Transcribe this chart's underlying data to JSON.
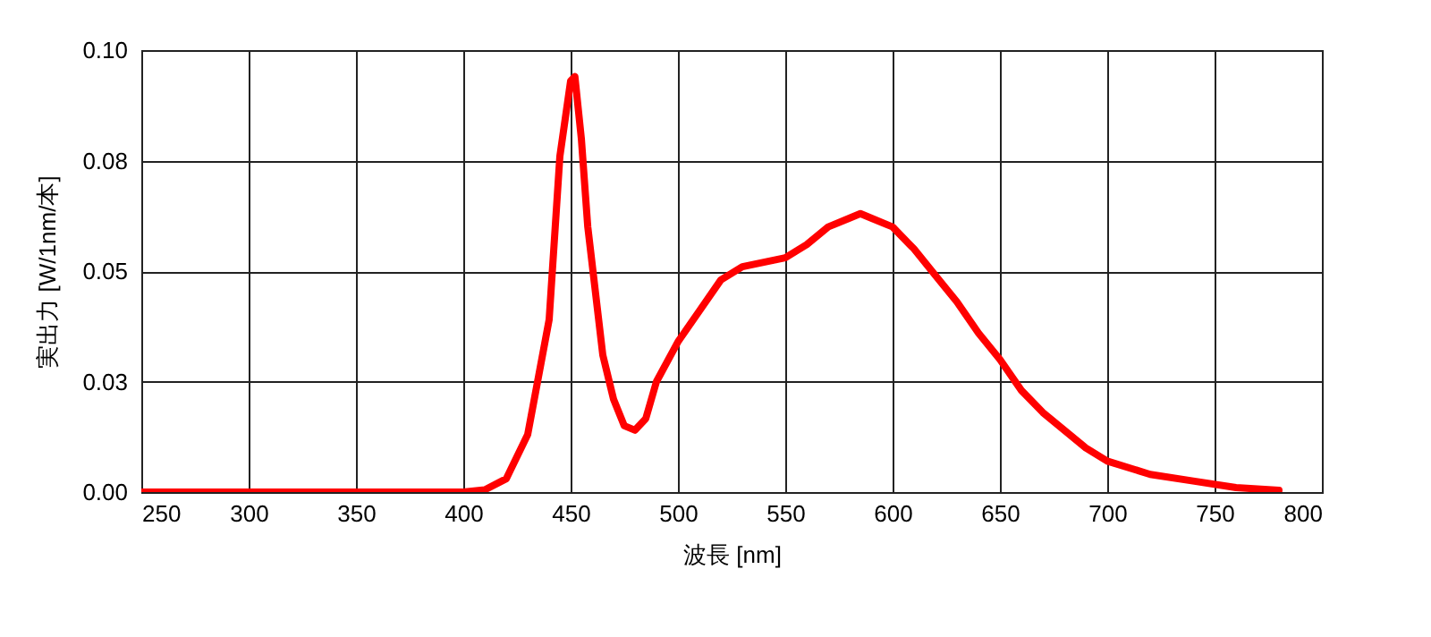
{
  "chart_data": {
    "type": "line",
    "xlabel": "波長 [nm]",
    "ylabel": "実出力 [W/1nm/本]",
    "xlim": [
      250,
      800
    ],
    "xticks": [
      250,
      300,
      350,
      400,
      450,
      500,
      550,
      600,
      650,
      700,
      750,
      800
    ],
    "ylim": [
      0,
      0.1
    ],
    "yticks": [
      {
        "value": 0,
        "label": "0.00"
      },
      {
        "value": 0.025,
        "label": "0.03"
      },
      {
        "value": 0.05,
        "label": "0.05"
      },
      {
        "value": 0.075,
        "label": "0.08"
      },
      {
        "value": 0.1,
        "label": "0.10"
      }
    ],
    "grid": true,
    "line_style": "solid",
    "x": [
      250,
      300,
      350,
      400,
      410,
      420,
      430,
      440,
      445,
      450,
      452,
      455,
      458,
      465,
      470,
      475,
      480,
      485,
      490,
      500,
      510,
      520,
      530,
      540,
      550,
      560,
      570,
      580,
      585,
      590,
      600,
      610,
      620,
      630,
      640,
      650,
      660,
      670,
      680,
      690,
      700,
      720,
      740,
      760,
      780
    ],
    "series": [
      {
        "color": "#ff0000",
        "values": [
          0,
          0,
          0,
          0,
          0.0005,
          0.003,
          0.013,
          0.039,
          0.076,
          0.093,
          0.094,
          0.08,
          0.06,
          0.031,
          0.021,
          0.015,
          0.014,
          0.0166,
          0.025,
          0.034,
          0.041,
          0.048,
          0.051,
          0.052,
          0.053,
          0.056,
          0.06,
          0.062,
          0.063,
          0.062,
          0.06,
          0.055,
          0.049,
          0.043,
          0.036,
          0.03,
          0.023,
          0.018,
          0.014,
          0.01,
          0.007,
          0.004,
          0.0025,
          0.001,
          0.0004
        ]
      }
    ]
  }
}
